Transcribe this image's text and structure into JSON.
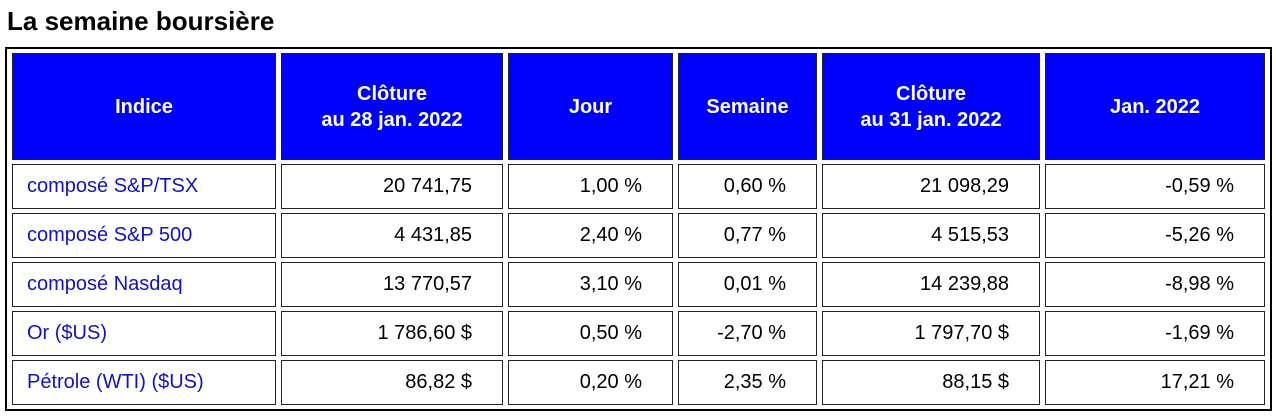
{
  "header": {
    "title": "La semaine boursière"
  },
  "table": {
    "columns": [
      [
        "Indice"
      ],
      [
        "Clôture",
        "au 28 jan. 2022"
      ],
      [
        "Jour"
      ],
      [
        "Semaine"
      ],
      [
        "Clôture",
        "au 31 jan. 2022"
      ],
      [
        "Jan. 2022"
      ]
    ],
    "rows": [
      [
        "composé S&P/TSX",
        "20 741,75",
        "1,00 %",
        "0,60 %",
        "21 098,29",
        "-0,59 %"
      ],
      [
        "composé S&P 500",
        "4 431,85",
        "2,40 %",
        "0,77 %",
        "4 515,53",
        "-5,26 %"
      ],
      [
        "composé Nasdaq",
        "13 770,57",
        "3,10 %",
        "0,01 %",
        "14 239,88",
        "-8,98 %"
      ],
      [
        "Or ($US)",
        "1 786,60 $",
        "0,50 %",
        "-2,70 %",
        "1 797,70 $",
        "-1,69 %"
      ],
      [
        "Pétrole (WTI) ($US)",
        "86,82 $",
        "0,20 %",
        "2,35 %",
        "88,15 $",
        "17,21 %"
      ]
    ]
  }
}
